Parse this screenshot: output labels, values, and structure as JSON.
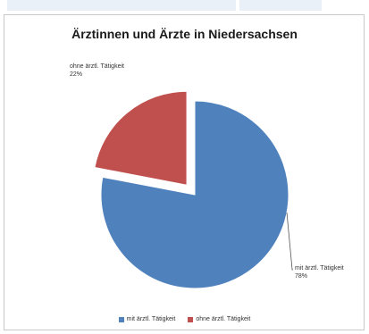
{
  "chart_data": {
    "type": "pie",
    "title": "Ärztinnen und Ärzte in Niedersachsen",
    "slices": [
      {
        "name": "mit ärztl. Tätigkeit",
        "value": 78,
        "label": "78%",
        "color": "#4f81bd",
        "exploded": false
      },
      {
        "name": "ohne ärztl. Tätigkeit",
        "value": 22,
        "label": "22%",
        "color": "#c0504d",
        "exploded": true
      }
    ],
    "legend_position": "bottom"
  }
}
